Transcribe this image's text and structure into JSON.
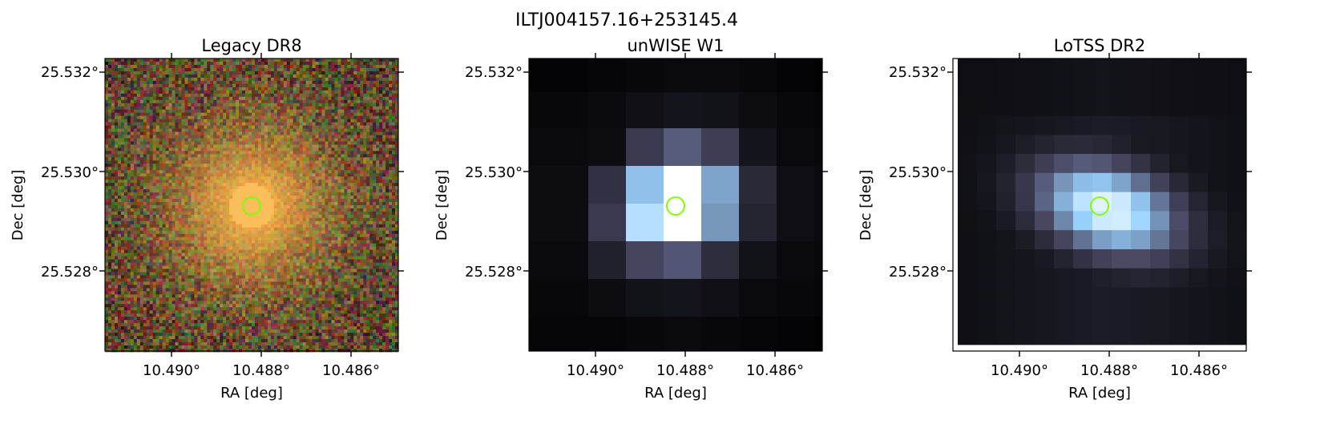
{
  "figure": {
    "title": "ILTJ004157.16+253145.4"
  },
  "panels": [
    {
      "id": "legacy",
      "title": "Legacy DR8",
      "xlabel": "RA [deg]",
      "ylabel": "Dec [deg]",
      "xticks": [
        "10.490°",
        "10.488°",
        "10.486°"
      ],
      "yticks": [
        "25.532°",
        "25.530°",
        "25.528°"
      ],
      "colormap": "rgb color composite",
      "marker_color": "#7fff00"
    },
    {
      "id": "unwise",
      "title": "unWISE W1",
      "xlabel": "RA [deg]",
      "ylabel": "Dec [deg]",
      "xticks": [
        "10.490°",
        "10.488°",
        "10.486°"
      ],
      "yticks": [
        "25.532°",
        "25.530°",
        "25.528°"
      ],
      "colormap": "bone",
      "marker_color": "#7fff00"
    },
    {
      "id": "lotss",
      "title": "LoTSS DR2",
      "xlabel": "RA [deg]",
      "ylabel": "Dec [deg]",
      "xticks": [
        "10.490°",
        "10.488°",
        "10.486°"
      ],
      "yticks": [
        "25.532°",
        "25.530°",
        "25.528°"
      ],
      "colormap": "bone",
      "marker_color": "#7fff00"
    }
  ]
}
